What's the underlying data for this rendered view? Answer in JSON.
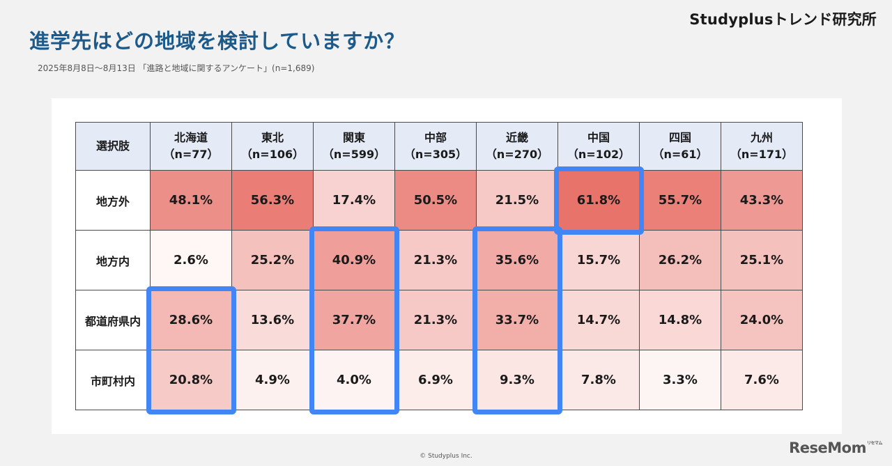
{
  "brand": "Studyplusトレンド研究所",
  "title": "進学先はどの地域を検討していますか？",
  "subtitle": "2025年8月8日～8月13日 「進路と地域に関するアンケート」(n=1,689)",
  "copyright": "© Studyplus Inc.",
  "logo": {
    "text": "ReseMom",
    "sub": "リセマム"
  },
  "colors": {
    "title": "#1d5a8c",
    "header_bg": "#e4ebf7",
    "highlight": "#4285f4",
    "heat_low": "#ffffff",
    "heat_high": "#e8736b"
  },
  "chart_data": {
    "type": "heatmap",
    "corner_label": "選択肢",
    "columns": [
      {
        "name": "北海道",
        "n": "（n=77）"
      },
      {
        "name": "東北",
        "n": "（n=106）"
      },
      {
        "name": "関東",
        "n": "（n=599）"
      },
      {
        "name": "中部",
        "n": "（n=305）"
      },
      {
        "name": "近畿",
        "n": "（n=270）"
      },
      {
        "name": "中国",
        "n": "（n=102）"
      },
      {
        "name": "四国",
        "n": "（n=61）"
      },
      {
        "name": "九州",
        "n": "（n=171）"
      }
    ],
    "rows": [
      "地方外",
      "地方内",
      "都道府県内",
      "市町村内"
    ],
    "values": [
      [
        48.1,
        56.3,
        17.4,
        50.5,
        21.5,
        61.8,
        55.7,
        43.3
      ],
      [
        2.6,
        25.2,
        40.9,
        21.3,
        35.6,
        15.7,
        26.2,
        25.1
      ],
      [
        28.6,
        13.6,
        37.7,
        21.3,
        33.7,
        14.7,
        14.8,
        24.0
      ],
      [
        20.8,
        4.9,
        4.0,
        6.9,
        9.3,
        7.8,
        3.3,
        7.6
      ]
    ],
    "unit": "%",
    "highlights": [
      {
        "column": 0,
        "row_start": 2,
        "row_end": 3
      },
      {
        "column": 2,
        "row_start": 1,
        "row_end": 3
      },
      {
        "column": 4,
        "row_start": 1,
        "row_end": 3
      },
      {
        "column": 5,
        "row_start": 0,
        "row_end": 0
      }
    ]
  }
}
